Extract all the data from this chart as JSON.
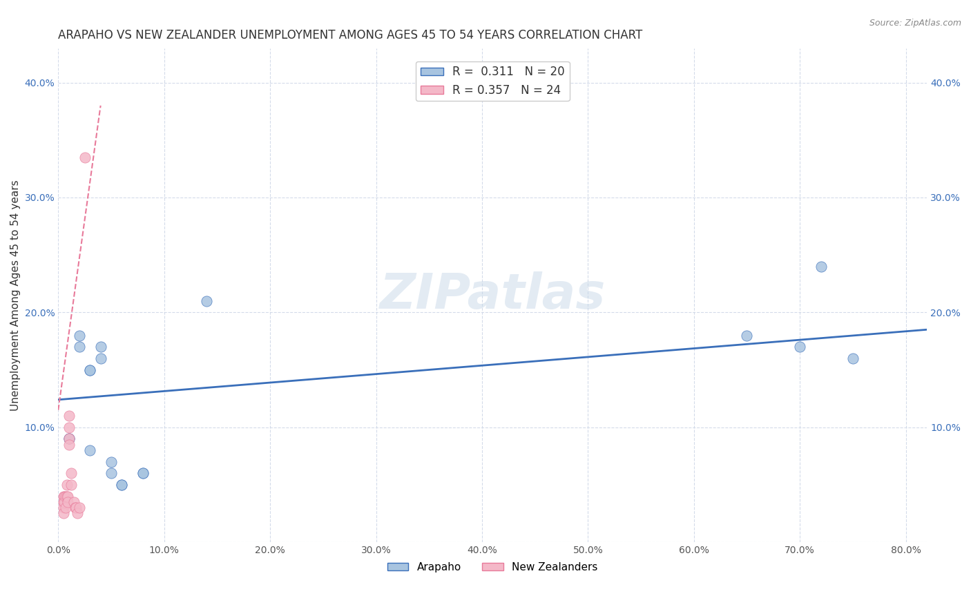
{
  "title": "ARAPAHO VS NEW ZEALANDER UNEMPLOYMENT AMONG AGES 45 TO 54 YEARS CORRELATION CHART",
  "source": "Source: ZipAtlas.com",
  "xlabel": "",
  "ylabel": "Unemployment Among Ages 45 to 54 years",
  "xlim": [
    0.0,
    0.82
  ],
  "ylim": [
    0.0,
    0.43
  ],
  "xticks": [
    0.0,
    0.1,
    0.2,
    0.3,
    0.4,
    0.5,
    0.6,
    0.7,
    0.8
  ],
  "xticklabels": [
    "0.0%",
    "10.0%",
    "20.0%",
    "30.0%",
    "40.0%",
    "50.0%",
    "60.0%",
    "70.0%",
    "80.0%"
  ],
  "yticks": [
    0.0,
    0.1,
    0.2,
    0.3,
    0.4
  ],
  "yticklabels": [
    "",
    "10.0%",
    "20.0%",
    "30.0%",
    "40.0%"
  ],
  "arapaho_color": "#a8c4e0",
  "nz_color": "#f4b8c8",
  "arapaho_line_color": "#3a6fba",
  "nz_line_color": "#e87a9a",
  "R_arapaho": 0.311,
  "N_arapaho": 20,
  "R_nz": 0.357,
  "N_nz": 24,
  "legend_R_color": "#1a56db",
  "legend_N_color": "#1a56db",
  "watermark": "ZIPatlas",
  "watermark_color": "#c8d8e8",
  "arapaho_x": [
    0.01,
    0.01,
    0.02,
    0.02,
    0.03,
    0.03,
    0.03,
    0.04,
    0.04,
    0.05,
    0.05,
    0.06,
    0.06,
    0.08,
    0.08,
    0.14,
    0.65,
    0.7,
    0.72,
    0.75
  ],
  "arapaho_y": [
    0.09,
    0.09,
    0.18,
    0.17,
    0.15,
    0.15,
    0.08,
    0.17,
    0.16,
    0.07,
    0.06,
    0.05,
    0.05,
    0.06,
    0.06,
    0.21,
    0.18,
    0.17,
    0.24,
    0.16
  ],
  "nz_x": [
    0.005,
    0.005,
    0.005,
    0.005,
    0.006,
    0.006,
    0.007,
    0.007,
    0.008,
    0.008,
    0.009,
    0.009,
    0.01,
    0.01,
    0.01,
    0.01,
    0.012,
    0.012,
    0.015,
    0.016,
    0.017,
    0.018,
    0.02,
    0.025
  ],
  "nz_y": [
    0.04,
    0.035,
    0.03,
    0.025,
    0.04,
    0.035,
    0.04,
    0.03,
    0.05,
    0.04,
    0.04,
    0.035,
    0.11,
    0.1,
    0.09,
    0.085,
    0.06,
    0.05,
    0.035,
    0.03,
    0.03,
    0.025,
    0.03,
    0.335
  ],
  "arapaho_trend_x": [
    0.0,
    0.82
  ],
  "arapaho_trend_y": [
    0.124,
    0.185
  ],
  "nz_trend_x": [
    0.0,
    0.04
  ],
  "nz_trend_y": [
    0.115,
    0.38
  ],
  "bg_color": "#ffffff",
  "grid_color": "#d0d8e8",
  "title_fontsize": 12,
  "axis_label_fontsize": 11,
  "tick_fontsize": 10,
  "legend_fontsize": 12
}
